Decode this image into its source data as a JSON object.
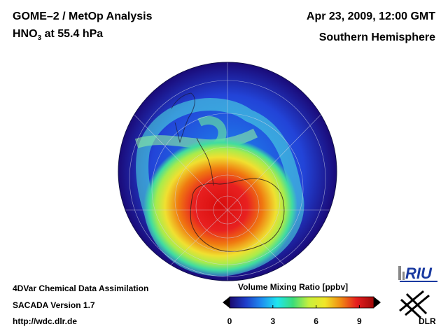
{
  "header": {
    "title_line1": "GOME–2 / MetOp Analysis",
    "species_prefix": "HNO",
    "species_subscript": "3",
    "species_suffix": " at 55.4 hPa",
    "date": "Apr 23, 2009, 12:00 GMT",
    "hemisphere": "Southern Hemisphere"
  },
  "footer": {
    "line1": "4DVar Chemical Data Assimilation",
    "line2": "SACADA Version 1.7",
    "line3": "http://wdc.dlr.de"
  },
  "colorbar": {
    "label": "Volume Mixing Ratio [ppbv]",
    "min": 0,
    "max": 10,
    "ticks": [
      "0",
      "3",
      "6",
      "9"
    ],
    "tick_values": [
      0,
      3,
      6,
      9
    ],
    "colors": [
      "#1a0a6e",
      "#1e3cc8",
      "#1e8cf0",
      "#1ee6f0",
      "#3cdc78",
      "#c8f03c",
      "#f0e628",
      "#f08c14",
      "#e61e1e",
      "#a00a0a"
    ]
  },
  "logos": {
    "riu": "RIU",
    "dlr": "DLR"
  },
  "map": {
    "projection": "orthographic",
    "center": "South Pole",
    "field": "HNO3 volume mixing ratio"
  }
}
